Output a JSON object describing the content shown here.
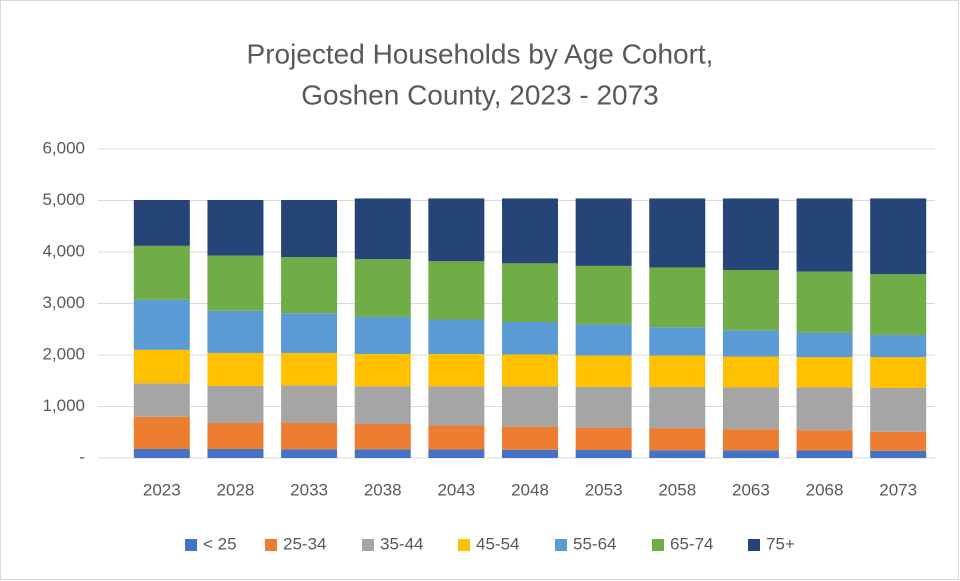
{
  "chart_data": {
    "type": "stacked_bar",
    "title": [
      "Projected Households by Age Cohort,",
      "Goshen County, 2023 - 2073"
    ],
    "categories": [
      "2023",
      "2028",
      "2033",
      "2038",
      "2043",
      "2048",
      "2053",
      "2058",
      "2063",
      "2068",
      "2073"
    ],
    "series": [
      {
        "name": "< 25",
        "color": "#4472c4",
        "values": [
          175,
          175,
          170,
          170,
          165,
          160,
          155,
          150,
          150,
          145,
          140
        ]
      },
      {
        "name": "25-34",
        "color": "#ed7d31",
        "values": [
          625,
          505,
          510,
          490,
          465,
          450,
          435,
          430,
          410,
          395,
          370
        ]
      },
      {
        "name": "35-44",
        "color": "#a5a5a5",
        "values": [
          650,
          720,
          730,
          730,
          760,
          780,
          790,
          800,
          810,
          830,
          850
        ]
      },
      {
        "name": "45-54",
        "color": "#ffc000",
        "values": [
          650,
          640,
          630,
          630,
          630,
          620,
          610,
          610,
          600,
          590,
          600
        ]
      },
      {
        "name": "55-64",
        "color": "#5b9bd5",
        "values": [
          970,
          820,
          770,
          720,
          670,
          630,
          600,
          550,
          510,
          470,
          430
        ]
      },
      {
        "name": "65-74",
        "color": "#70ad47",
        "values": [
          1050,
          1070,
          1090,
          1120,
          1130,
          1140,
          1140,
          1160,
          1170,
          1190,
          1180
        ]
      },
      {
        "name": "75+",
        "color": "#264478",
        "values": [
          890,
          1080,
          1110,
          1180,
          1220,
          1260,
          1310,
          1340,
          1390,
          1420,
          1470
        ]
      }
    ],
    "ylim": [
      0,
      6000
    ],
    "yticks": [
      {
        "value": 0,
        "label": "-"
      },
      {
        "value": 1000,
        "label": "1,000"
      },
      {
        "value": 2000,
        "label": "2,000"
      },
      {
        "value": 3000,
        "label": "3,000"
      },
      {
        "value": 4000,
        "label": "4,000"
      },
      {
        "value": 5000,
        "label": "5,000"
      },
      {
        "value": 6000,
        "label": "6,000"
      }
    ],
    "grid": true,
    "legend": "bottom"
  }
}
